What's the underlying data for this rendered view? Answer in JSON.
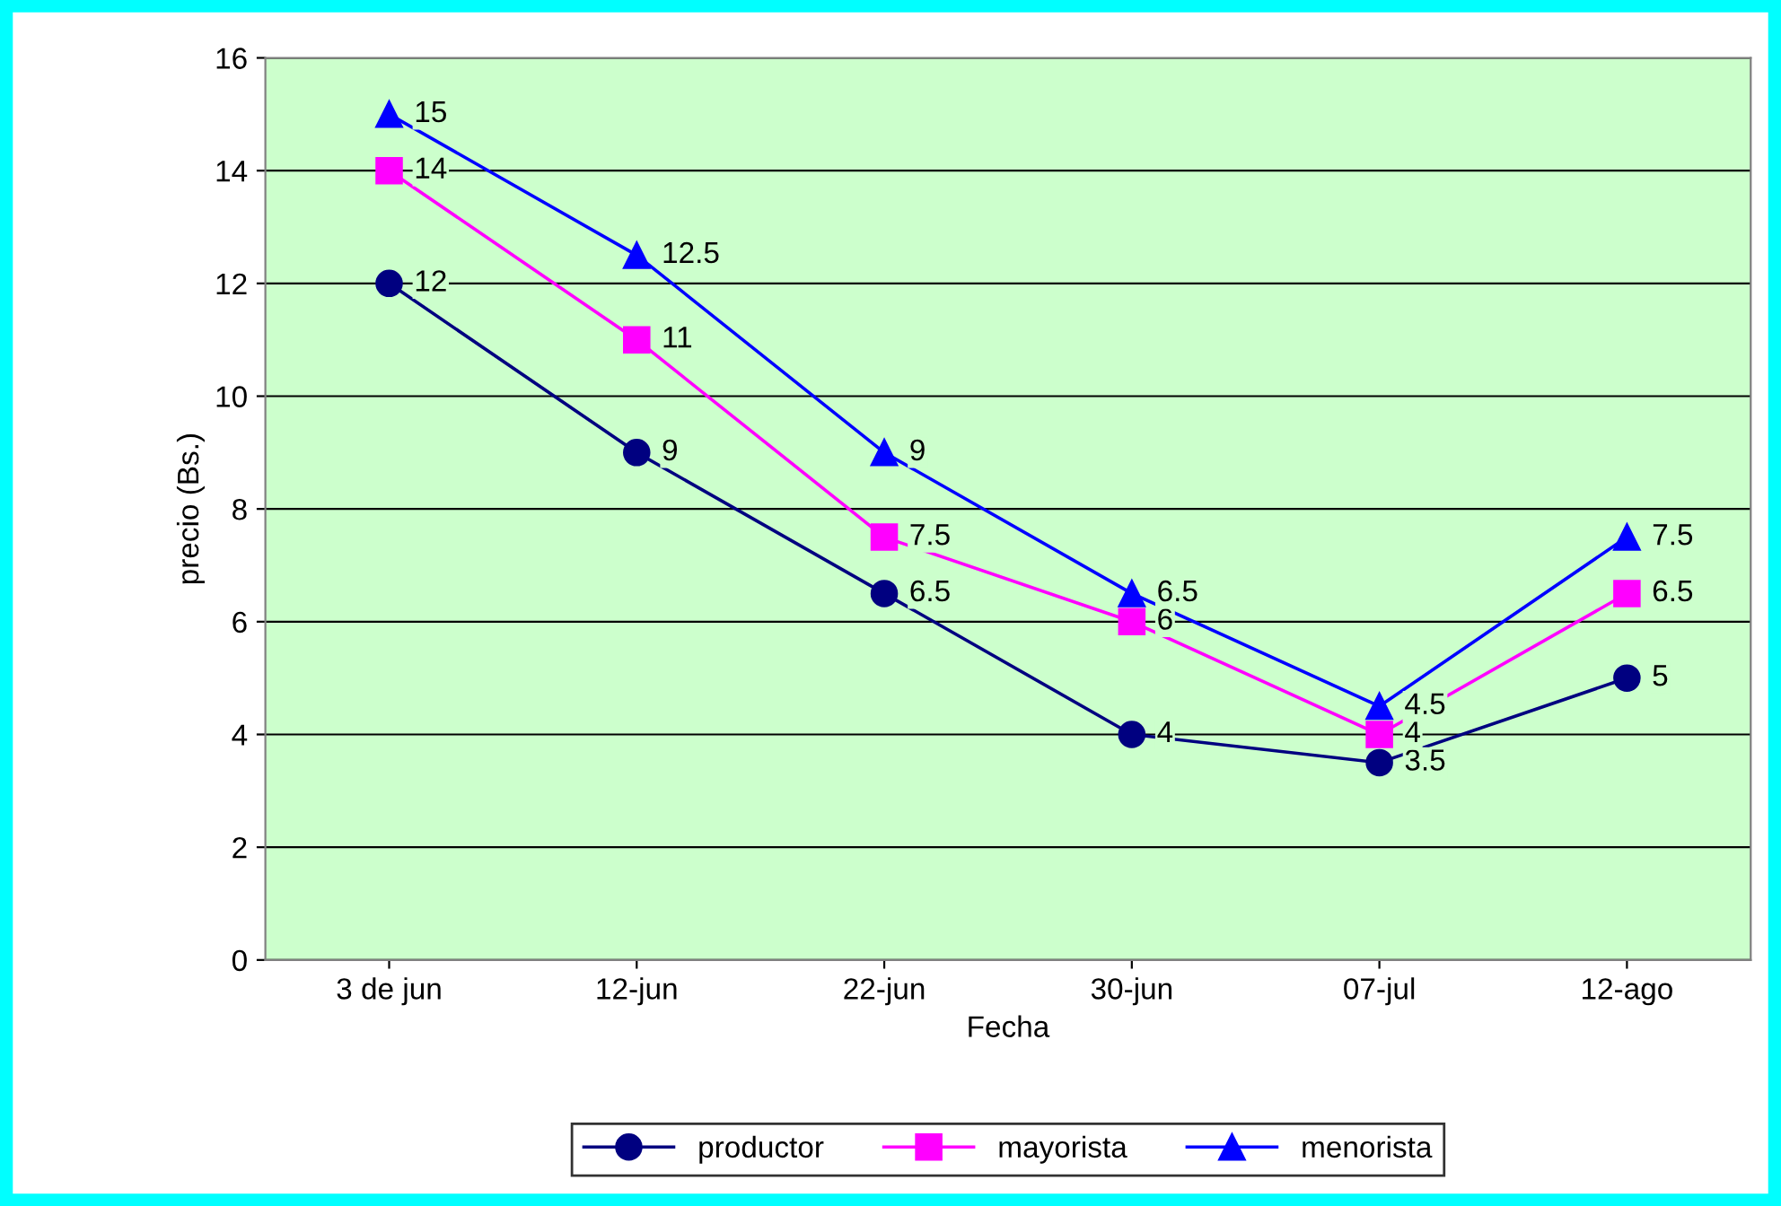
{
  "chart_data": {
    "type": "line",
    "xlabel": "Fecha",
    "ylabel": "precio (Bs.)",
    "categories": [
      "3 de jun",
      "12-jun",
      "22-jun",
      "30-jun",
      "07-jul",
      "12-ago"
    ],
    "series": [
      {
        "name": "productor",
        "color": "#000080",
        "marker": "circle",
        "values": [
          12,
          9,
          6.5,
          4,
          3.5,
          5
        ]
      },
      {
        "name": "mayorista",
        "color": "#ff00ff",
        "marker": "square",
        "values": [
          14,
          11,
          7.5,
          6,
          4,
          6.5
        ]
      },
      {
        "name": "menorista",
        "color": "#0000ff",
        "marker": "triangle",
        "values": [
          15,
          12.5,
          9,
          6.5,
          4.5,
          7.5
        ]
      }
    ],
    "ylim": [
      0,
      16
    ],
    "yticks": [
      0,
      2,
      4,
      6,
      8,
      10,
      12,
      14,
      16
    ],
    "grid": "y",
    "legend": "bottom",
    "data_labels": true,
    "line_style": "solid"
  }
}
